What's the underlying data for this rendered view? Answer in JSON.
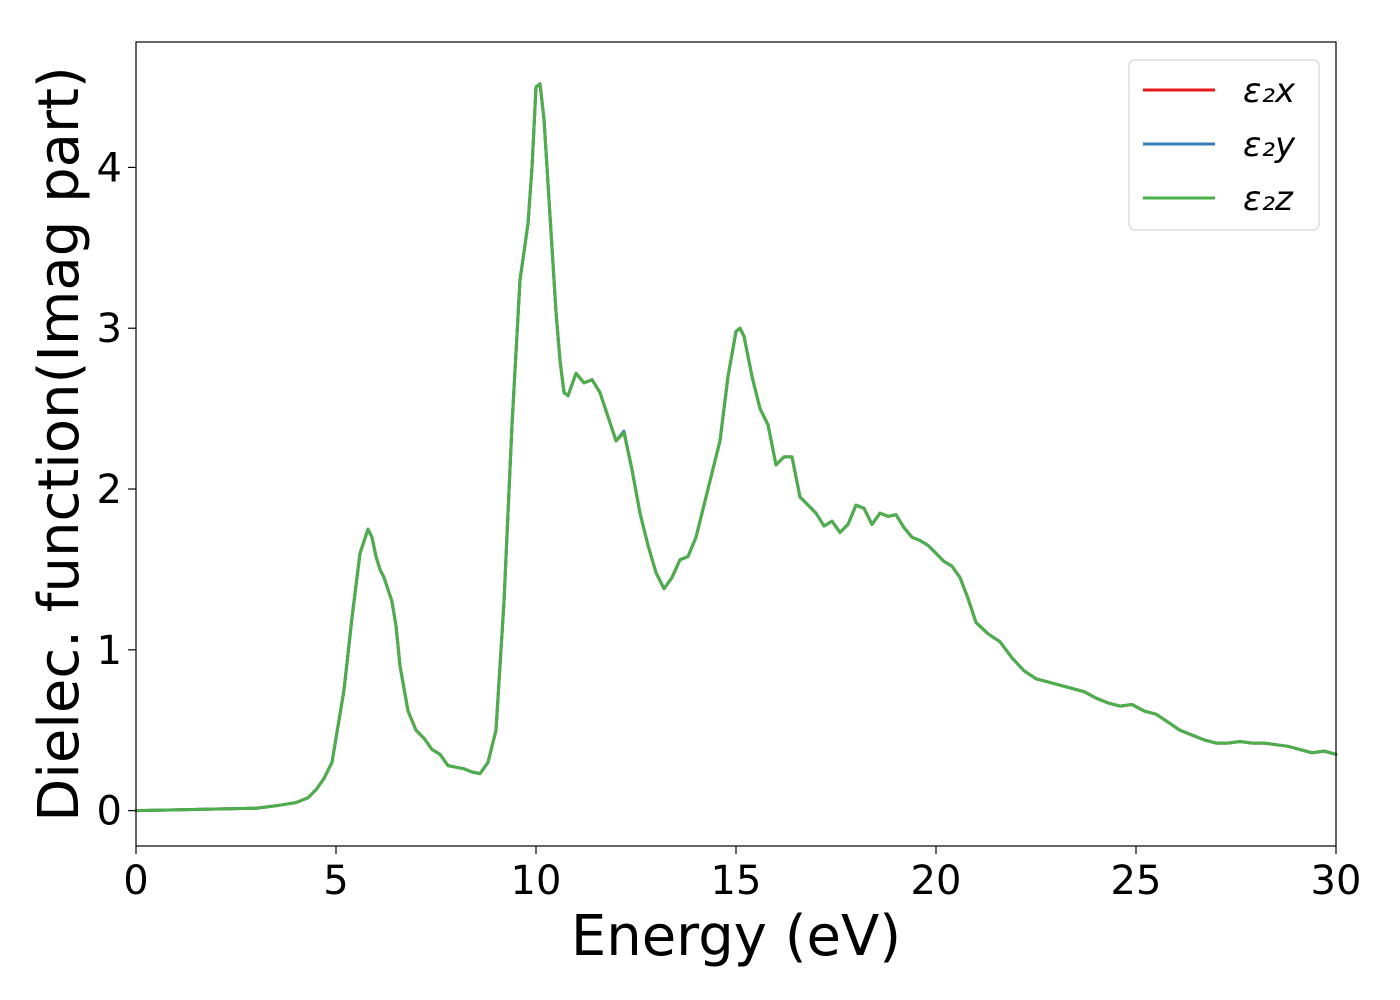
{
  "chart_data": {
    "type": "line",
    "title": "",
    "xlabel": "Energy (eV)",
    "ylabel": "Dielec. function(Imag part)",
    "xlim": [
      0,
      30
    ],
    "ylim": [
      -0.22,
      4.78
    ],
    "xticks": [
      0,
      5,
      10,
      15,
      20,
      25,
      30
    ],
    "xtick_labels": [
      "0",
      "5",
      "10",
      "15",
      "20",
      "25",
      "30"
    ],
    "yticks": [
      0,
      1,
      2,
      3,
      4
    ],
    "ytick_labels": [
      "0",
      "1",
      "2",
      "3",
      "4"
    ],
    "grid": false,
    "legend_position": "top-right",
    "x": [
      0,
      1,
      2,
      3,
      3.5,
      4,
      4.3,
      4.5,
      4.7,
      4.9,
      5.0,
      5.2,
      5.4,
      5.6,
      5.8,
      5.9,
      6.0,
      6.1,
      6.2,
      6.4,
      6.5,
      6.6,
      6.8,
      7.0,
      7.2,
      7.4,
      7.6,
      7.8,
      8.0,
      8.2,
      8.4,
      8.6,
      8.8,
      9.0,
      9.2,
      9.4,
      9.6,
      9.8,
      9.9,
      10.0,
      10.1,
      10.2,
      10.3,
      10.4,
      10.5,
      10.6,
      10.7,
      10.8,
      11.0,
      11.2,
      11.4,
      11.6,
      11.8,
      12.0,
      12.2,
      12.4,
      12.6,
      12.8,
      13.0,
      13.2,
      13.4,
      13.6,
      13.8,
      14.0,
      14.2,
      14.4,
      14.6,
      14.8,
      15.0,
      15.1,
      15.2,
      15.4,
      15.6,
      15.8,
      16.0,
      16.2,
      16.4,
      16.6,
      16.8,
      17.0,
      17.2,
      17.4,
      17.6,
      17.8,
      18.0,
      18.2,
      18.4,
      18.6,
      18.8,
      19.0,
      19.2,
      19.4,
      19.6,
      19.8,
      20.0,
      20.2,
      20.4,
      20.6,
      20.8,
      21.0,
      21.3,
      21.6,
      21.9,
      22.2,
      22.5,
      22.8,
      23.1,
      23.4,
      23.7,
      24.0,
      24.3,
      24.6,
      24.9,
      25.2,
      25.5,
      25.8,
      26.1,
      26.4,
      26.7,
      27.0,
      27.3,
      27.6,
      27.9,
      28.2,
      28.5,
      28.8,
      29.1,
      29.4,
      29.7,
      30.0
    ],
    "series": [
      {
        "name": "ε₂x",
        "color": "#e41a1c",
        "values": [
          0.0,
          0.005,
          0.01,
          0.015,
          0.03,
          0.05,
          0.08,
          0.13,
          0.2,
          0.3,
          0.45,
          0.75,
          1.2,
          1.6,
          1.75,
          1.7,
          1.58,
          1.5,
          1.45,
          1.3,
          1.15,
          0.9,
          0.62,
          0.5,
          0.45,
          0.38,
          0.35,
          0.28,
          0.27,
          0.26,
          0.24,
          0.23,
          0.3,
          0.5,
          1.3,
          2.4,
          3.3,
          3.65,
          4.0,
          4.5,
          4.52,
          4.3,
          3.9,
          3.5,
          3.1,
          2.8,
          2.6,
          2.58,
          2.72,
          2.66,
          2.68,
          2.6,
          2.45,
          2.3,
          2.35,
          2.12,
          1.85,
          1.65,
          1.48,
          1.38,
          1.45,
          1.56,
          1.58,
          1.7,
          1.9,
          2.1,
          2.3,
          2.7,
          2.98,
          3.0,
          2.95,
          2.7,
          2.5,
          2.4,
          2.15,
          2.2,
          2.2,
          1.95,
          1.9,
          1.85,
          1.77,
          1.8,
          1.73,
          1.78,
          1.9,
          1.88,
          1.78,
          1.85,
          1.83,
          1.84,
          1.76,
          1.7,
          1.68,
          1.65,
          1.6,
          1.55,
          1.52,
          1.45,
          1.32,
          1.17,
          1.1,
          1.05,
          0.95,
          0.87,
          0.82,
          0.8,
          0.78,
          0.76,
          0.74,
          0.7,
          0.67,
          0.65,
          0.66,
          0.62,
          0.6,
          0.55,
          0.5,
          0.47,
          0.44,
          0.42,
          0.42,
          0.43,
          0.42,
          0.42,
          0.41,
          0.4,
          0.38,
          0.36,
          0.37,
          0.35
        ]
      },
      {
        "name": "ε₂y",
        "color": "#377eb8",
        "values": [
          0.0,
          0.005,
          0.01,
          0.015,
          0.03,
          0.05,
          0.08,
          0.13,
          0.2,
          0.3,
          0.45,
          0.75,
          1.2,
          1.6,
          1.75,
          1.7,
          1.58,
          1.5,
          1.45,
          1.3,
          1.15,
          0.9,
          0.62,
          0.5,
          0.45,
          0.38,
          0.35,
          0.28,
          0.27,
          0.26,
          0.24,
          0.23,
          0.3,
          0.5,
          1.3,
          2.4,
          3.3,
          3.65,
          4.0,
          4.5,
          4.52,
          4.3,
          3.9,
          3.5,
          3.1,
          2.8,
          2.6,
          2.58,
          2.72,
          2.66,
          2.68,
          2.6,
          2.45,
          2.3,
          2.36,
          2.12,
          1.85,
          1.65,
          1.48,
          1.38,
          1.45,
          1.56,
          1.58,
          1.7,
          1.9,
          2.1,
          2.3,
          2.7,
          2.98,
          3.0,
          2.95,
          2.7,
          2.5,
          2.4,
          2.15,
          2.2,
          2.2,
          1.95,
          1.9,
          1.85,
          1.77,
          1.8,
          1.73,
          1.78,
          1.9,
          1.88,
          1.78,
          1.85,
          1.83,
          1.84,
          1.76,
          1.7,
          1.68,
          1.65,
          1.6,
          1.55,
          1.52,
          1.45,
          1.32,
          1.17,
          1.1,
          1.05,
          0.95,
          0.87,
          0.82,
          0.8,
          0.78,
          0.76,
          0.74,
          0.7,
          0.67,
          0.65,
          0.66,
          0.62,
          0.6,
          0.55,
          0.5,
          0.47,
          0.44,
          0.42,
          0.42,
          0.43,
          0.42,
          0.42,
          0.41,
          0.4,
          0.38,
          0.36,
          0.37,
          0.35
        ]
      },
      {
        "name": "ε₂z",
        "color": "#4daf4a",
        "values": [
          0.0,
          0.005,
          0.01,
          0.015,
          0.03,
          0.05,
          0.08,
          0.13,
          0.2,
          0.3,
          0.45,
          0.75,
          1.2,
          1.6,
          1.75,
          1.7,
          1.58,
          1.5,
          1.45,
          1.3,
          1.15,
          0.9,
          0.62,
          0.5,
          0.45,
          0.38,
          0.35,
          0.28,
          0.27,
          0.26,
          0.24,
          0.23,
          0.3,
          0.5,
          1.3,
          2.4,
          3.3,
          3.65,
          4.0,
          4.5,
          4.52,
          4.3,
          3.9,
          3.5,
          3.1,
          2.8,
          2.6,
          2.58,
          2.72,
          2.66,
          2.68,
          2.6,
          2.45,
          2.3,
          2.35,
          2.12,
          1.85,
          1.65,
          1.48,
          1.38,
          1.45,
          1.56,
          1.58,
          1.7,
          1.9,
          2.1,
          2.3,
          2.7,
          2.98,
          3.0,
          2.95,
          2.7,
          2.5,
          2.4,
          2.15,
          2.2,
          2.2,
          1.95,
          1.9,
          1.85,
          1.77,
          1.8,
          1.73,
          1.78,
          1.9,
          1.88,
          1.78,
          1.85,
          1.83,
          1.84,
          1.76,
          1.7,
          1.68,
          1.65,
          1.6,
          1.55,
          1.52,
          1.45,
          1.32,
          1.17,
          1.1,
          1.05,
          0.95,
          0.87,
          0.82,
          0.8,
          0.78,
          0.76,
          0.74,
          0.7,
          0.67,
          0.65,
          0.66,
          0.62,
          0.6,
          0.55,
          0.5,
          0.47,
          0.44,
          0.42,
          0.42,
          0.43,
          0.42,
          0.42,
          0.41,
          0.4,
          0.38,
          0.36,
          0.37,
          0.35
        ]
      }
    ]
  }
}
